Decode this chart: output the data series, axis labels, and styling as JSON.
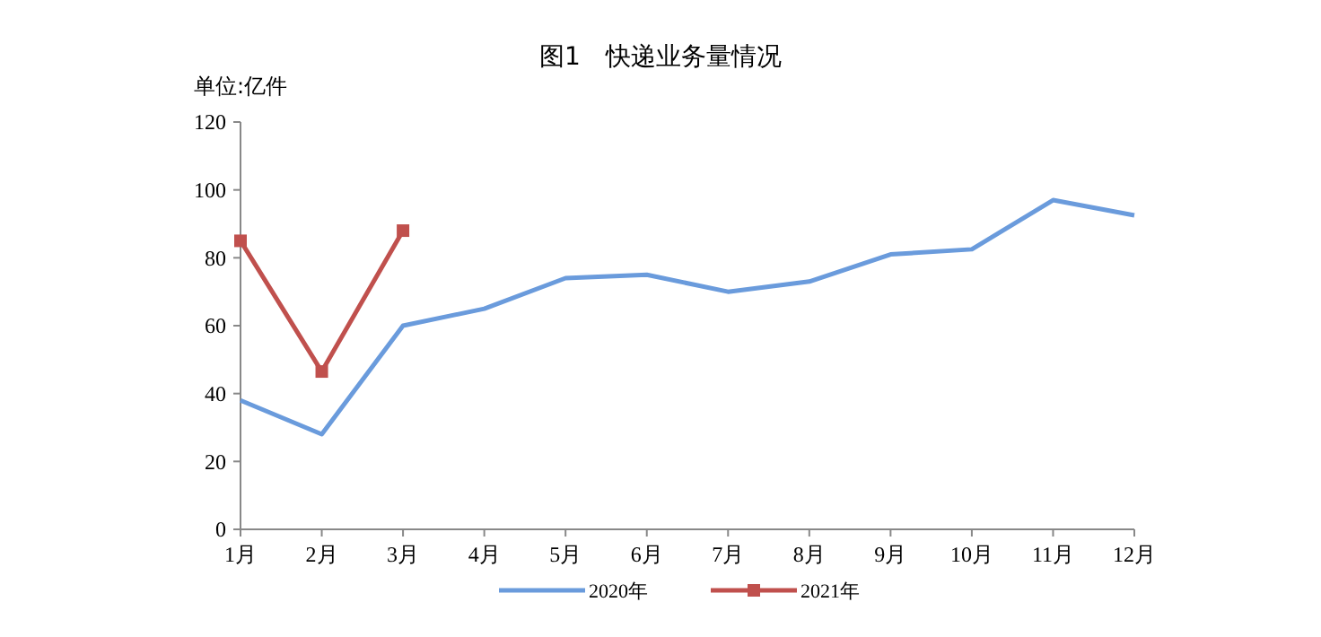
{
  "chart_data": {
    "type": "line",
    "title": "图1　快递业务量情况",
    "ylabel": "单位:亿件",
    "categories": [
      "1月",
      "2月",
      "3月",
      "4月",
      "5月",
      "6月",
      "7月",
      "8月",
      "9月",
      "10月",
      "11月",
      "12月"
    ],
    "ylim": [
      0,
      120
    ],
    "yticks": [
      0,
      20,
      40,
      60,
      80,
      100,
      120
    ],
    "grid": false,
    "legend": "bottom",
    "series": [
      {
        "name": "2020年",
        "color": "#6a9bdc",
        "marker": "none",
        "values": [
          38,
          28,
          60,
          65,
          74,
          75,
          70,
          73,
          81,
          82.5,
          97,
          92.5
        ]
      },
      {
        "name": "2021年",
        "color": "#c0504d",
        "marker": "square",
        "values": [
          85,
          46.5,
          88,
          null,
          null,
          null,
          null,
          null,
          null,
          null,
          null,
          null
        ]
      }
    ]
  }
}
